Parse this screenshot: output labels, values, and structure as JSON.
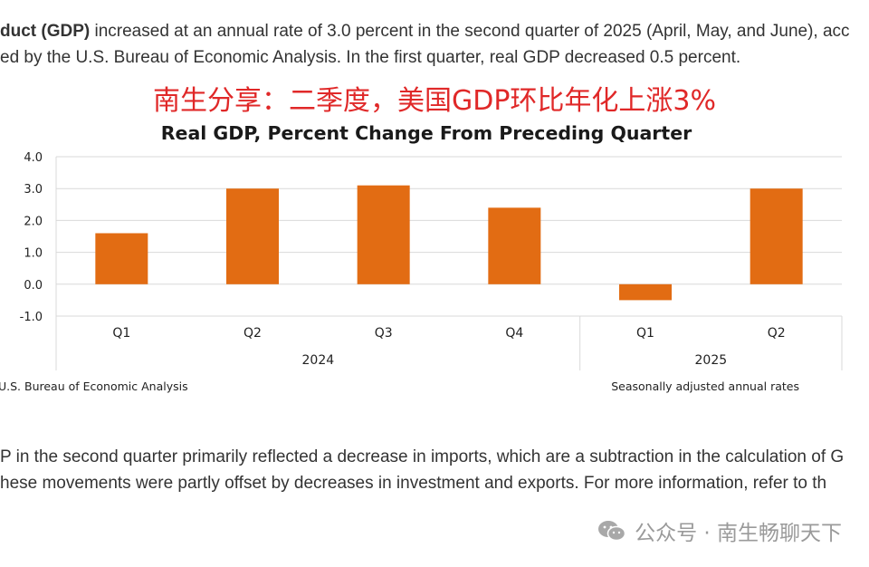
{
  "intro": {
    "line1_bold": "duct (GDP)",
    "line1_rest": " increased at an annual rate of 3.0 percent in the second quarter of 2025 (April, May, and June), acc",
    "line2": "ed by the U.S. Bureau of Economic Analysis. In the first quarter, real GDP decreased 0.5 percent."
  },
  "overlay_title": "南生分享：二季度，美国GDP环比年化上涨3%",
  "chart_data": {
    "type": "bar",
    "title": "Real GDP, Percent Change From Preceding Quarter",
    "categories": [
      "Q1",
      "Q2",
      "Q3",
      "Q4",
      "Q1",
      "Q2"
    ],
    "groups": [
      {
        "label": "2024",
        "count": 4
      },
      {
        "label": "2025",
        "count": 2
      }
    ],
    "values": [
      1.6,
      3.0,
      3.1,
      2.4,
      -0.5,
      3.0
    ],
    "ylim": [
      -1.0,
      4.0
    ],
    "yticks": [
      "4.0",
      "3.0",
      "2.0",
      "1.0",
      "0.0",
      "-1.0"
    ],
    "ytick_values": [
      4,
      3,
      2,
      1,
      0,
      -1
    ],
    "grid": true,
    "bar_color": "#e26c13",
    "source": "U.S. Bureau of Economic Analysis",
    "note": "Seasonally adjusted annual rates"
  },
  "body": {
    "line1": "P in the second quarter primarily reflected a decrease in imports, which are a subtraction in the calculation of G",
    "line2": "hese movements were partly offset by decreases in investment and exports. For more information, refer to th"
  },
  "watermark": {
    "icon": "wechat-icon",
    "text": "公众号 · 南生畅聊天下"
  }
}
